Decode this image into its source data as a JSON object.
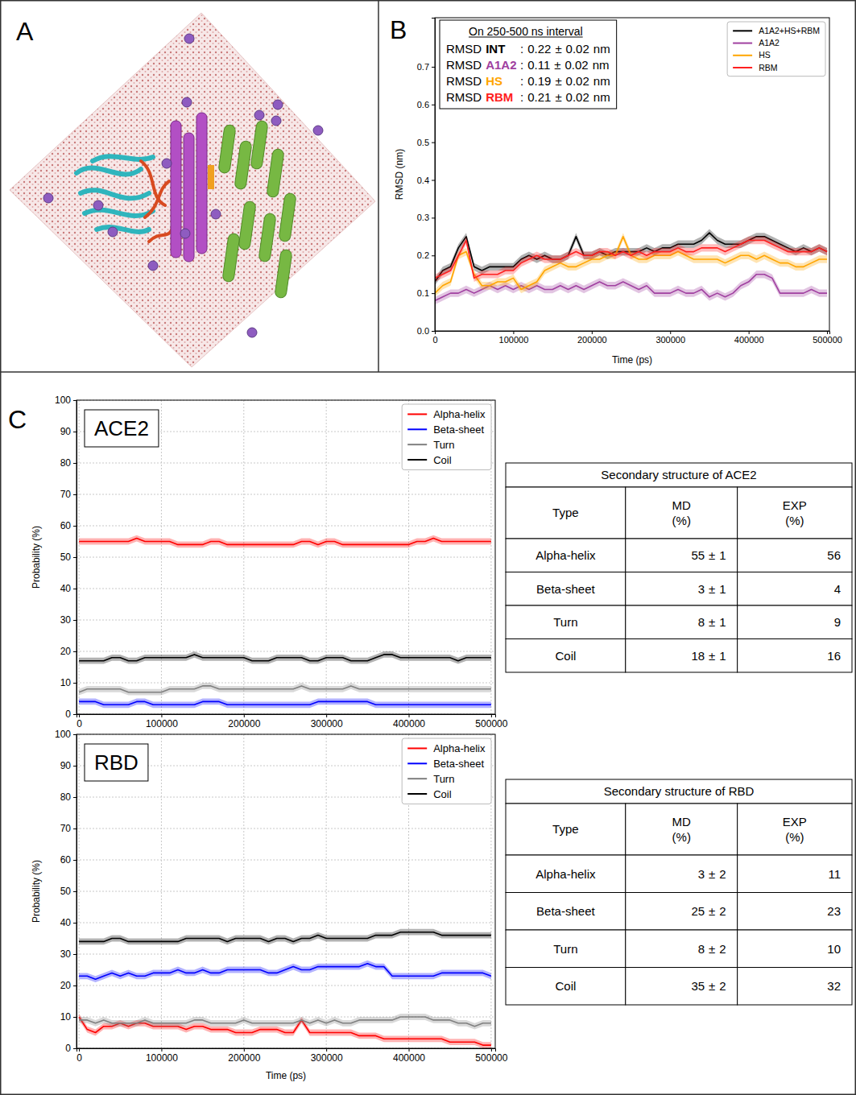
{
  "panel_labels": [
    "A",
    "B",
    "C"
  ],
  "chart_data": [
    {
      "type": "line",
      "xlabel": "Time (ps)",
      "ylabel": "RMSD (nm)",
      "xlim": [
        0,
        503000
      ],
      "ylim": [
        0,
        0.83
      ],
      "xticks": [
        0,
        100000,
        200000,
        300000,
        400000,
        500000
      ],
      "yticks": [
        {
          "value": 0,
          "label": "0.0"
        },
        {
          "value": 0.1,
          "label": "0.1"
        },
        {
          "value": 0.2,
          "label": "0.2"
        },
        {
          "value": 0.3,
          "label": "0.3"
        },
        {
          "value": 0.4,
          "label": "0.4"
        },
        {
          "value": 0.5,
          "label": "0.5"
        },
        {
          "value": 0.6,
          "label": "0.6"
        },
        {
          "value": 0.7,
          "label": "0.7"
        }
      ],
      "grid": false,
      "legend": "upper right",
      "x": [
        0,
        10000,
        20000,
        30000,
        40000,
        50000,
        60000,
        70000,
        80000,
        90000,
        100000,
        110000,
        120000,
        130000,
        140000,
        150000,
        160000,
        170000,
        180000,
        190000,
        200000,
        210000,
        220000,
        230000,
        240000,
        250000,
        260000,
        270000,
        280000,
        290000,
        300000,
        310000,
        320000,
        330000,
        340000,
        350000,
        360000,
        370000,
        380000,
        390000,
        400000,
        410000,
        420000,
        430000,
        440000,
        450000,
        460000,
        470000,
        480000,
        490000,
        500000
      ],
      "series": [
        {
          "name": "A1A2+HS+RBM",
          "color": "#000000",
          "error": 0.01,
          "values": [
            0.13,
            0.16,
            0.17,
            0.22,
            0.25,
            0.17,
            0.16,
            0.17,
            0.17,
            0.17,
            0.17,
            0.19,
            0.2,
            0.19,
            0.2,
            0.19,
            0.19,
            0.2,
            0.25,
            0.2,
            0.2,
            0.21,
            0.2,
            0.21,
            0.21,
            0.21,
            0.21,
            0.22,
            0.21,
            0.22,
            0.22,
            0.23,
            0.23,
            0.23,
            0.24,
            0.26,
            0.24,
            0.23,
            0.23,
            0.23,
            0.24,
            0.25,
            0.25,
            0.24,
            0.23,
            0.22,
            0.21,
            0.22,
            0.21,
            0.22,
            0.21
          ]
        },
        {
          "name": "A1A2",
          "color": "#a040a0",
          "error": 0.01,
          "values": [
            0.08,
            0.09,
            0.1,
            0.1,
            0.11,
            0.1,
            0.11,
            0.12,
            0.11,
            0.12,
            0.11,
            0.12,
            0.11,
            0.12,
            0.11,
            0.11,
            0.12,
            0.11,
            0.12,
            0.11,
            0.12,
            0.13,
            0.12,
            0.12,
            0.13,
            0.12,
            0.11,
            0.12,
            0.1,
            0.1,
            0.1,
            0.11,
            0.1,
            0.1,
            0.11,
            0.09,
            0.1,
            0.09,
            0.1,
            0.12,
            0.13,
            0.15,
            0.15,
            0.14,
            0.1,
            0.1,
            0.1,
            0.1,
            0.11,
            0.1,
            0.1
          ]
        },
        {
          "name": "HS",
          "color": "#ffa500",
          "error": 0.01,
          "values": [
            0.1,
            0.12,
            0.13,
            0.2,
            0.21,
            0.15,
            0.12,
            0.12,
            0.13,
            0.13,
            0.14,
            0.11,
            0.12,
            0.13,
            0.16,
            0.17,
            0.18,
            0.17,
            0.17,
            0.18,
            0.19,
            0.19,
            0.2,
            0.2,
            0.25,
            0.2,
            0.19,
            0.19,
            0.2,
            0.2,
            0.2,
            0.21,
            0.2,
            0.19,
            0.19,
            0.19,
            0.19,
            0.18,
            0.19,
            0.2,
            0.2,
            0.19,
            0.2,
            0.19,
            0.18,
            0.18,
            0.17,
            0.17,
            0.18,
            0.19,
            0.19
          ]
        },
        {
          "name": "RBM",
          "color": "#ff2020",
          "error": 0.01,
          "values": [
            0.14,
            0.15,
            0.16,
            0.2,
            0.24,
            0.14,
            0.15,
            0.15,
            0.15,
            0.16,
            0.16,
            0.18,
            0.19,
            0.2,
            0.19,
            0.19,
            0.19,
            0.2,
            0.21,
            0.2,
            0.2,
            0.21,
            0.21,
            0.2,
            0.21,
            0.2,
            0.21,
            0.2,
            0.21,
            0.21,
            0.21,
            0.22,
            0.21,
            0.21,
            0.22,
            0.22,
            0.22,
            0.21,
            0.22,
            0.23,
            0.24,
            0.24,
            0.24,
            0.23,
            0.22,
            0.21,
            0.21,
            0.21,
            0.21,
            0.22,
            0.21
          ]
        }
      ],
      "annotation": {
        "title": "On 250-500 ns interval",
        "separator": ":",
        "plus_minus": "±",
        "rows": [
          {
            "prefix": "RMSD",
            "label": "INT",
            "color": "#000000",
            "value": 0.22,
            "error": 0.02,
            "unit": "nm"
          },
          {
            "prefix": "RMSD",
            "label": "A1A2",
            "color": "#a040a0",
            "value": 0.11,
            "error": 0.02,
            "unit": "nm"
          },
          {
            "prefix": "RMSD",
            "label": "HS",
            "color": "#ffa500",
            "value": 0.19,
            "error": 0.02,
            "unit": "nm"
          },
          {
            "prefix": "RMSD",
            "label": "RBM",
            "color": "#ff2020",
            "value": 0.21,
            "error": 0.02,
            "unit": "nm"
          }
        ]
      }
    },
    {
      "type": "line",
      "title": "ACE2",
      "ylabel": "Probability (%)",
      "xlim": [
        -3000,
        505000
      ],
      "ylim": [
        0,
        100
      ],
      "xticks": [
        0,
        100000,
        200000,
        300000,
        400000,
        500000
      ],
      "yticks": [
        0,
        10,
        20,
        30,
        40,
        50,
        60,
        70,
        80,
        90,
        100
      ],
      "grid": true,
      "legend": "upper right",
      "x": [
        0,
        10000,
        20000,
        30000,
        40000,
        50000,
        60000,
        70000,
        80000,
        90000,
        100000,
        110000,
        120000,
        130000,
        140000,
        150000,
        160000,
        170000,
        180000,
        190000,
        200000,
        210000,
        220000,
        230000,
        240000,
        250000,
        260000,
        270000,
        280000,
        290000,
        300000,
        310000,
        320000,
        330000,
        340000,
        350000,
        360000,
        370000,
        380000,
        390000,
        400000,
        410000,
        420000,
        430000,
        440000,
        450000,
        460000,
        470000,
        480000,
        490000,
        500000
      ],
      "series": [
        {
          "name": "Alpha-helix",
          "color": "#ff0000",
          "error": 1,
          "values": [
            55,
            55,
            55,
            55,
            55,
            55,
            55,
            56,
            55,
            55,
            55,
            55,
            54,
            54,
            54,
            54,
            55,
            55,
            54,
            54,
            54,
            54,
            54,
            54,
            54,
            54,
            54,
            55,
            55,
            54,
            55,
            55,
            54,
            54,
            54,
            54,
            54,
            54,
            54,
            54,
            54,
            55,
            55,
            56,
            55,
            55,
            55,
            55,
            55,
            55,
            55
          ]
        },
        {
          "name": "Beta-sheet",
          "color": "#0000ff",
          "error": 1,
          "values": [
            4,
            4,
            4,
            3,
            3,
            3,
            3,
            4,
            4,
            3,
            3,
            3,
            3,
            3,
            3,
            4,
            4,
            4,
            3,
            3,
            3,
            3,
            3,
            3,
            3,
            3,
            3,
            3,
            3,
            4,
            4,
            4,
            4,
            4,
            4,
            4,
            3,
            3,
            3,
            3,
            3,
            3,
            3,
            3,
            3,
            3,
            3,
            3,
            3,
            3,
            3
          ]
        },
        {
          "name": "Turn",
          "color": "#808080",
          "error": 1,
          "values": [
            7,
            8,
            8,
            8,
            8,
            8,
            7,
            7,
            7,
            7,
            7,
            8,
            8,
            8,
            8,
            9,
            9,
            8,
            8,
            8,
            8,
            8,
            8,
            8,
            8,
            8,
            8,
            9,
            8,
            8,
            8,
            8,
            8,
            9,
            8,
            8,
            8,
            8,
            8,
            8,
            8,
            8,
            8,
            8,
            8,
            8,
            8,
            8,
            8,
            8,
            8
          ]
        },
        {
          "name": "Coil",
          "color": "#000000",
          "error": 1,
          "values": [
            17,
            17,
            17,
            17,
            18,
            18,
            17,
            17,
            18,
            18,
            18,
            18,
            18,
            18,
            19,
            18,
            18,
            18,
            18,
            18,
            18,
            17,
            17,
            17,
            18,
            18,
            18,
            18,
            17,
            17,
            18,
            18,
            18,
            17,
            17,
            17,
            18,
            19,
            19,
            18,
            18,
            18,
            18,
            18,
            18,
            18,
            17,
            18,
            18,
            18,
            18
          ]
        }
      ]
    },
    {
      "type": "line",
      "title": "RBD",
      "xlabel": "Time (ps)",
      "ylabel": "Probability (%)",
      "xlim": [
        -3000,
        505000
      ],
      "ylim": [
        0,
        100
      ],
      "xticks": [
        0,
        100000,
        200000,
        300000,
        400000,
        500000
      ],
      "yticks": [
        0,
        10,
        20,
        30,
        40,
        50,
        60,
        70,
        80,
        90,
        100
      ],
      "grid": true,
      "legend": "upper right",
      "x": [
        0,
        10000,
        20000,
        30000,
        40000,
        50000,
        60000,
        70000,
        80000,
        90000,
        100000,
        110000,
        120000,
        130000,
        140000,
        150000,
        160000,
        170000,
        180000,
        190000,
        200000,
        210000,
        220000,
        230000,
        240000,
        250000,
        260000,
        270000,
        280000,
        290000,
        300000,
        310000,
        320000,
        330000,
        340000,
        350000,
        360000,
        370000,
        380000,
        390000,
        400000,
        410000,
        420000,
        430000,
        440000,
        450000,
        460000,
        470000,
        480000,
        490000,
        500000
      ],
      "series": [
        {
          "name": "Alpha-helix",
          "color": "#ff0000",
          "error": 1,
          "values": [
            10,
            6,
            5,
            7,
            7,
            8,
            7,
            8,
            8,
            7,
            7,
            7,
            7,
            6,
            7,
            7,
            6,
            6,
            6,
            5,
            5,
            5,
            6,
            6,
            6,
            5,
            5,
            9,
            5,
            5,
            5,
            5,
            5,
            5,
            4,
            4,
            4,
            3,
            3,
            3,
            3,
            3,
            3,
            3,
            3,
            2,
            2,
            2,
            2,
            1,
            1
          ]
        },
        {
          "name": "Beta-sheet",
          "color": "#0000ff",
          "error": 1,
          "values": [
            23,
            23,
            22,
            23,
            24,
            23,
            24,
            23,
            23,
            24,
            24,
            24,
            25,
            24,
            24,
            25,
            24,
            24,
            25,
            25,
            25,
            25,
            25,
            24,
            24,
            25,
            26,
            25,
            25,
            26,
            26,
            26,
            26,
            26,
            26,
            27,
            26,
            26,
            23,
            23,
            23,
            23,
            23,
            23,
            24,
            24,
            24,
            24,
            24,
            24,
            23
          ]
        },
        {
          "name": "Turn",
          "color": "#808080",
          "error": 1,
          "values": [
            9,
            9,
            8,
            9,
            8,
            8,
            8,
            8,
            9,
            8,
            8,
            8,
            8,
            8,
            9,
            9,
            8,
            8,
            8,
            8,
            9,
            8,
            8,
            8,
            8,
            8,
            8,
            9,
            8,
            9,
            8,
            9,
            8,
            8,
            9,
            9,
            9,
            9,
            9,
            10,
            10,
            10,
            10,
            9,
            9,
            9,
            8,
            8,
            7,
            8,
            8
          ]
        },
        {
          "name": "Coil",
          "color": "#000000",
          "error": 1,
          "values": [
            34,
            34,
            34,
            34,
            35,
            35,
            34,
            34,
            34,
            34,
            34,
            34,
            34,
            35,
            35,
            35,
            35,
            35,
            34,
            35,
            35,
            35,
            35,
            34,
            35,
            35,
            34,
            35,
            35,
            36,
            35,
            35,
            35,
            35,
            35,
            35,
            36,
            36,
            36,
            37,
            37,
            37,
            37,
            37,
            36,
            36,
            36,
            36,
            36,
            36,
            36
          ]
        }
      ]
    }
  ],
  "tables": [
    {
      "title": "Secondary structure of ACE2",
      "headers": [
        "Type",
        [
          "MD",
          "(%)"
        ],
        [
          "EXP",
          "(%)"
        ]
      ],
      "plus_minus": "±",
      "rows": [
        {
          "type": "Alpha-helix",
          "md": 55,
          "md_error": 1,
          "exp": 56
        },
        {
          "type": "Beta-sheet",
          "md": 3,
          "md_error": 1,
          "exp": 4
        },
        {
          "type": "Turn",
          "md": 8,
          "md_error": 1,
          "exp": 9
        },
        {
          "type": "Coil",
          "md": 18,
          "md_error": 1,
          "exp": 16
        }
      ]
    },
    {
      "title": "Secondary structure of RBD",
      "headers": [
        "Type",
        [
          "MD",
          "(%)"
        ],
        [
          "EXP",
          "(%)"
        ]
      ],
      "plus_minus": "±",
      "rows": [
        {
          "type": "Alpha-helix",
          "md": 3,
          "md_error": 2,
          "exp": 11
        },
        {
          "type": "Beta-sheet",
          "md": 25,
          "md_error": 2,
          "exp": 23
        },
        {
          "type": "Turn",
          "md": 8,
          "md_error": 2,
          "exp": 10
        },
        {
          "type": "Coil",
          "md": 35,
          "md_error": 2,
          "exp": 32
        }
      ]
    }
  ]
}
